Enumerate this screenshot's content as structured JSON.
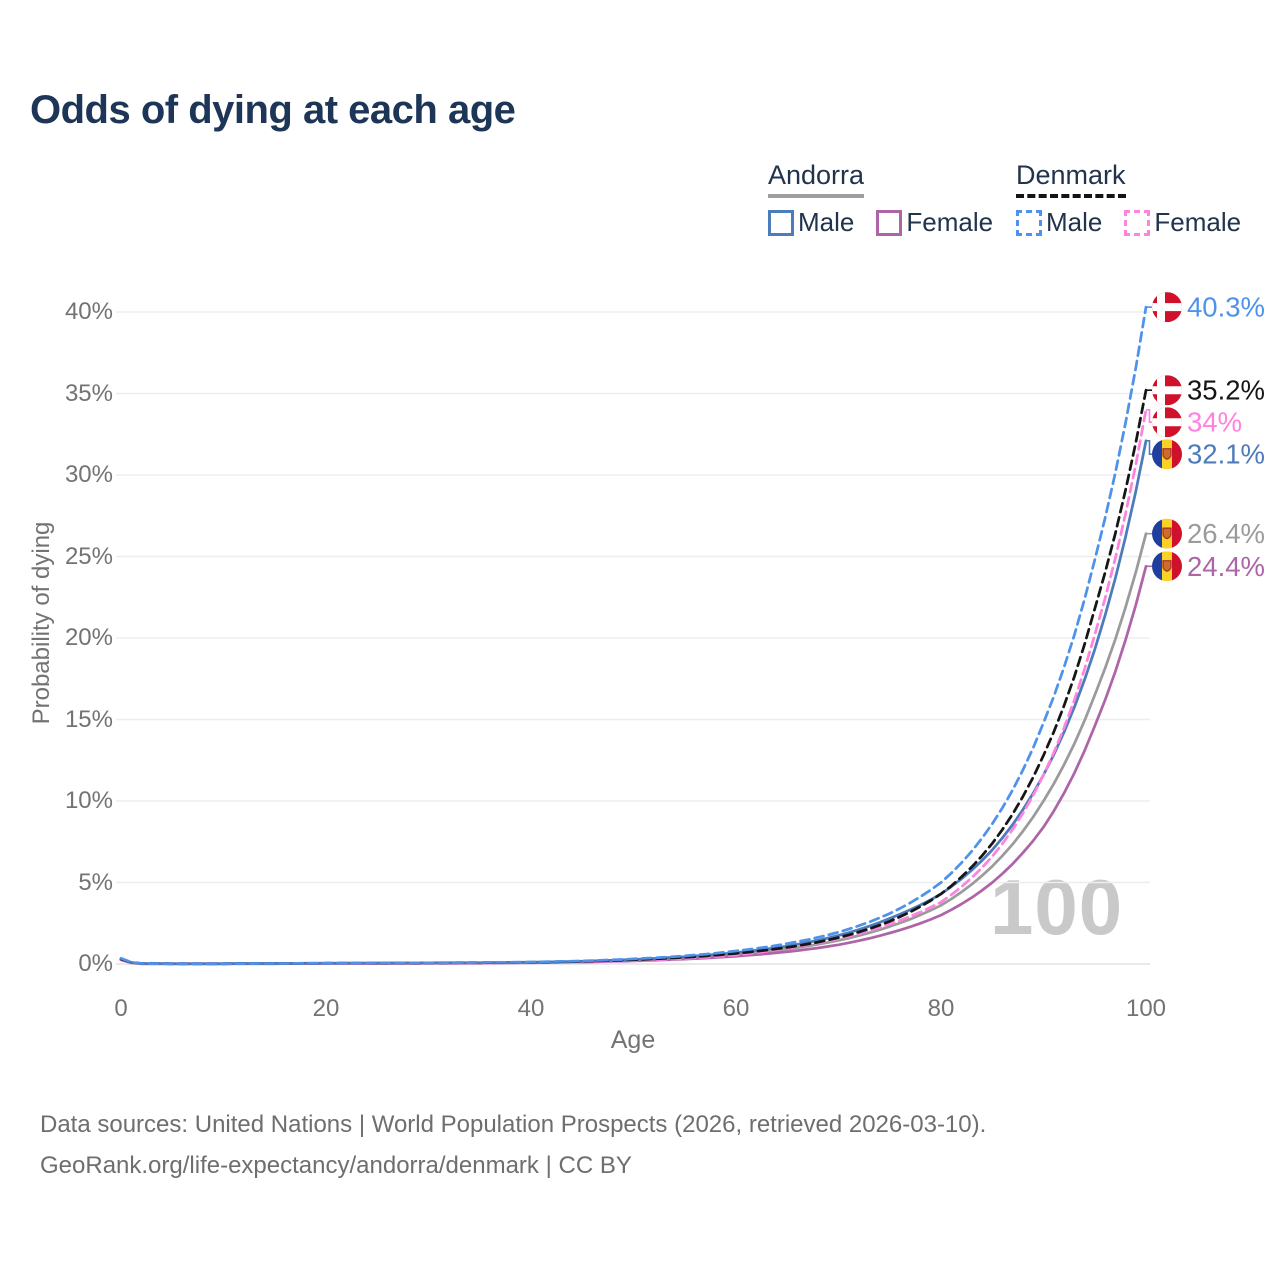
{
  "title": "Odds of dying at each age",
  "watermark": "100",
  "legend": {
    "groups": [
      {
        "id": "andorra",
        "label": "Andorra",
        "line_style": "solid",
        "underline_color": "#9e9e9e",
        "items": [
          {
            "id": "andorra-male",
            "label": "Male",
            "color": "#4d7cba",
            "dashed": false
          },
          {
            "id": "andorra-female",
            "label": "Female",
            "color": "#ae65a8",
            "dashed": false
          }
        ]
      },
      {
        "id": "denmark",
        "label": "Denmark",
        "line_style": "dashed",
        "underline_color": "#141414",
        "items": [
          {
            "id": "denmark-male",
            "label": "Male",
            "color": "#4e92ec",
            "dashed": true
          },
          {
            "id": "denmark-female",
            "label": "Female",
            "color": "#ff82df",
            "dashed": true
          }
        ]
      }
    ]
  },
  "footer": {
    "line1": "Data sources: United Nations | World Population Prospects (2026, retrieved 2026-03-10).",
    "line2": "GeoRank.org/life-expectancy/andorra/denmark | CC BY"
  },
  "flag_colors": {
    "denmark": {
      "red": "#d0112b",
      "cross": "#ffffff"
    },
    "andorra": {
      "blue": "#1e3f9e",
      "yellow": "#fcd125",
      "red": "#d0112b",
      "emblem": "#c8702a",
      "emblem_border": "#b03028"
    }
  },
  "chart_data": {
    "type": "line",
    "title": "Odds of dying at each age",
    "xlabel": "Age",
    "ylabel": "Probability of dying",
    "xlim": [
      0,
      100
    ],
    "ylim_percent": [
      0,
      40
    ],
    "grid": true,
    "legend_position": "top-right",
    "xticks": [
      0,
      20,
      40,
      60,
      80,
      100
    ],
    "ytick_values": [
      0,
      5,
      10,
      15,
      20,
      25,
      30,
      35,
      40
    ],
    "ytick_labels": [
      "0%",
      "5%",
      "10%",
      "15%",
      "20%",
      "25%",
      "30%",
      "35%",
      "40%"
    ],
    "ages": [
      0,
      2,
      5,
      10,
      15,
      20,
      25,
      30,
      35,
      40,
      45,
      50,
      55,
      60,
      65,
      70,
      75,
      80,
      85,
      90,
      95,
      100
    ],
    "series": [
      {
        "id": "andorra-all",
        "name": "Andorra (all)",
        "country": "Andorra",
        "sex": "All",
        "color": "#9b9b9b",
        "dashed": false,
        "flag": "andorra",
        "end_label": "26.4%",
        "values_percent": [
          0.28,
          0.02,
          0.02,
          0.02,
          0.03,
          0.04,
          0.05,
          0.06,
          0.07,
          0.09,
          0.14,
          0.23,
          0.37,
          0.58,
          0.92,
          1.45,
          2.3,
          3.6,
          6.0,
          10.0,
          16.5,
          26.4
        ]
      },
      {
        "id": "andorra-female",
        "name": "Andorra Female",
        "country": "Andorra",
        "sex": "Female",
        "color": "#ae65a8",
        "dashed": false,
        "flag": "andorra",
        "end_label": "24.4%",
        "values_percent": [
          0.25,
          0.02,
          0.01,
          0.01,
          0.02,
          0.03,
          0.03,
          0.04,
          0.05,
          0.08,
          0.12,
          0.19,
          0.3,
          0.48,
          0.75,
          1.18,
          1.9,
          3.0,
          5.0,
          8.4,
          14.6,
          24.4
        ]
      },
      {
        "id": "andorra-male",
        "name": "Andorra Male",
        "country": "Andorra",
        "sex": "Male",
        "color": "#4d7cba",
        "dashed": false,
        "flag": "andorra",
        "end_label": "32.1%",
        "values_percent": [
          0.3,
          0.03,
          0.02,
          0.02,
          0.03,
          0.05,
          0.06,
          0.07,
          0.08,
          0.11,
          0.17,
          0.28,
          0.45,
          0.7,
          1.1,
          1.75,
          2.8,
          4.3,
          7.0,
          11.6,
          19.3,
          32.1
        ]
      },
      {
        "id": "denmark-female",
        "name": "Denmark Female",
        "country": "Denmark",
        "sex": "Female",
        "color": "#ff82df",
        "dashed": true,
        "flag": "denmark",
        "end_label": "34%",
        "values_percent": [
          0.26,
          0.02,
          0.01,
          0.02,
          0.02,
          0.03,
          0.03,
          0.04,
          0.06,
          0.08,
          0.13,
          0.21,
          0.34,
          0.55,
          0.98,
          1.55,
          2.45,
          3.8,
          6.6,
          11.6,
          20.2,
          34.0
        ]
      },
      {
        "id": "denmark-all",
        "name": "Denmark (all)",
        "country": "Denmark",
        "sex": "All",
        "color": "#161616",
        "dashed": true,
        "flag": "denmark",
        "end_label": "35.2%",
        "values_percent": [
          0.3,
          0.03,
          0.02,
          0.02,
          0.03,
          0.04,
          0.05,
          0.06,
          0.08,
          0.1,
          0.16,
          0.26,
          0.41,
          0.65,
          1.02,
          1.62,
          2.62,
          4.3,
          7.4,
          12.8,
          21.8,
          35.2
        ]
      },
      {
        "id": "denmark-male",
        "name": "Denmark Male",
        "country": "Denmark",
        "sex": "Male",
        "color": "#4e92ec",
        "dashed": true,
        "flag": "denmark",
        "end_label": "40.3%",
        "values_percent": [
          0.35,
          0.03,
          0.02,
          0.02,
          0.03,
          0.05,
          0.06,
          0.07,
          0.09,
          0.12,
          0.19,
          0.31,
          0.5,
          0.8,
          1.25,
          1.95,
          3.1,
          5.0,
          8.6,
          14.8,
          24.8,
          40.3
        ]
      }
    ],
    "annotations": {
      "watermark": "100"
    }
  }
}
